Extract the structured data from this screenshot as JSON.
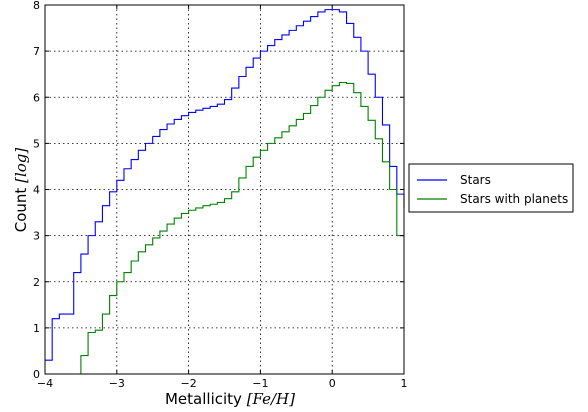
{
  "chart_data": {
    "type": "line",
    "step": true,
    "xlabel_text": "Metallicity",
    "xlabel_math": "[Fe/H]",
    "ylabel_text": "Count",
    "ylabel_math": "[log]",
    "xlim": [
      -4,
      1
    ],
    "ylim": [
      0,
      8
    ],
    "xticks": [
      -4,
      -3,
      -2,
      -1,
      0,
      1
    ],
    "yticks": [
      0,
      1,
      2,
      3,
      4,
      5,
      6,
      7,
      8
    ],
    "xtick_labels": [
      "−4",
      "−3",
      "−2",
      "−1",
      "0",
      "1"
    ],
    "ytick_labels": [
      "0",
      "1",
      "2",
      "3",
      "4",
      "5",
      "6",
      "7",
      "8"
    ],
    "grid": true,
    "legend_position": "outside-right",
    "colors": {
      "Stars": "#0000ff",
      "Stars with planets": "#008000"
    },
    "series": [
      {
        "name": "Stars",
        "x": [
          -4.0,
          -3.9,
          -3.8,
          -3.6,
          -3.5,
          -3.4,
          -3.3,
          -3.2,
          -3.1,
          -3.0,
          -2.9,
          -2.8,
          -2.7,
          -2.6,
          -2.5,
          -2.4,
          -2.3,
          -2.2,
          -2.1,
          -2.0,
          -1.9,
          -1.8,
          -1.7,
          -1.6,
          -1.5,
          -1.4,
          -1.3,
          -1.2,
          -1.1,
          -1.0,
          -0.9,
          -0.8,
          -0.7,
          -0.6,
          -0.5,
          -0.4,
          -0.3,
          -0.2,
          -0.1,
          0.0,
          0.1,
          0.2,
          0.3,
          0.4,
          0.5,
          0.6,
          0.7,
          0.8,
          0.9,
          1.0
        ],
        "y": [
          0.3,
          1.2,
          1.3,
          2.2,
          2.6,
          3.0,
          3.3,
          3.65,
          3.95,
          4.2,
          4.45,
          4.65,
          4.85,
          5.0,
          5.15,
          5.3,
          5.42,
          5.52,
          5.6,
          5.67,
          5.72,
          5.76,
          5.8,
          5.85,
          5.95,
          6.2,
          6.45,
          6.65,
          6.85,
          7.0,
          7.12,
          7.25,
          7.35,
          7.45,
          7.55,
          7.65,
          7.75,
          7.85,
          7.9,
          7.9,
          7.85,
          7.6,
          7.3,
          7.0,
          6.5,
          6.0,
          5.4,
          4.5,
          3.9,
          3.6
        ]
      },
      {
        "name": "Stars with planets",
        "x": [
          -3.6,
          -3.5,
          -3.4,
          -3.3,
          -3.2,
          -3.1,
          -3.0,
          -2.9,
          -2.8,
          -2.7,
          -2.6,
          -2.5,
          -2.4,
          -2.3,
          -2.2,
          -2.1,
          -2.0,
          -1.9,
          -1.8,
          -1.7,
          -1.6,
          -1.5,
          -1.4,
          -1.3,
          -1.2,
          -1.1,
          -1.0,
          -0.9,
          -0.8,
          -0.7,
          -0.6,
          -0.5,
          -0.4,
          -0.3,
          -0.2,
          -0.1,
          0.0,
          0.1,
          0.2,
          0.3,
          0.4,
          0.5,
          0.6,
          0.7,
          0.8,
          0.9,
          1.0
        ],
        "y": [
          0.0,
          0.4,
          0.9,
          0.95,
          1.3,
          1.7,
          2.0,
          2.2,
          2.45,
          2.65,
          2.8,
          2.95,
          3.1,
          3.25,
          3.38,
          3.48,
          3.55,
          3.6,
          3.65,
          3.68,
          3.72,
          3.8,
          3.95,
          4.25,
          4.5,
          4.7,
          4.85,
          5.0,
          5.12,
          5.25,
          5.38,
          5.52,
          5.65,
          5.82,
          6.0,
          6.15,
          6.25,
          6.32,
          6.3,
          6.1,
          5.8,
          5.5,
          5.1,
          4.6,
          4.0,
          3.0,
          3.0
        ]
      }
    ]
  }
}
